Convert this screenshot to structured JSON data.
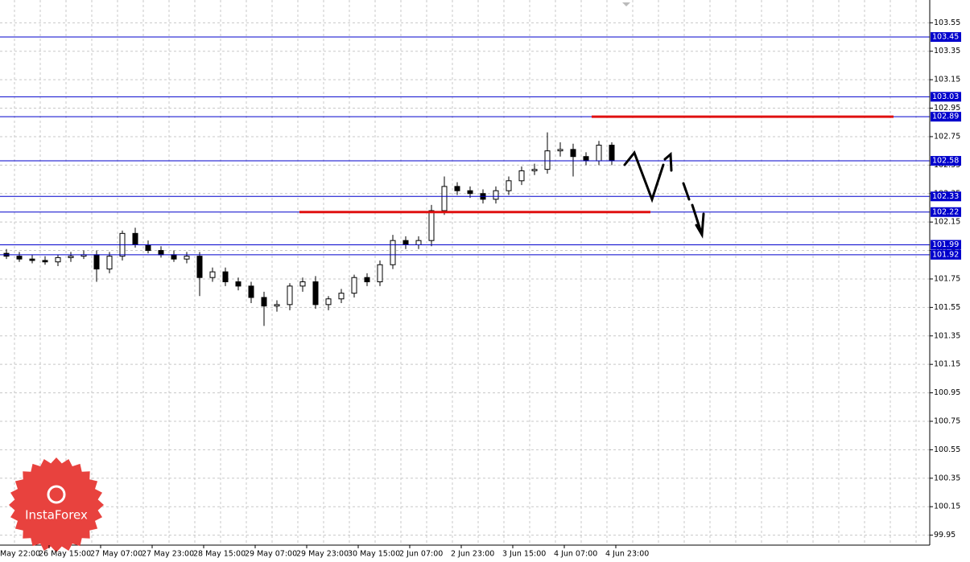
{
  "chart_data": {
    "type": "candlestick",
    "x_labels": [
      "May 22:00",
      "26 May 15:00",
      "27 May 07:00",
      "27 May 23:00",
      "28 May 15:00",
      "29 May 07:00",
      "29 May 23:00",
      "30 May 15:00",
      "2 Jun 07:00",
      "2 Jun 23:00",
      "3 Jun 15:00",
      "4 Jun 07:00",
      "4 Jun 23:00"
    ],
    "open": [
      101.93,
      101.91,
      101.89,
      101.88,
      101.87,
      101.9,
      101.91,
      101.92,
      101.82,
      101.91,
      102.07,
      101.99,
      101.95,
      101.92,
      101.89,
      101.91,
      101.76,
      101.8,
      101.73,
      101.7,
      101.62,
      101.56,
      101.57,
      101.7,
      101.73,
      101.57,
      101.61,
      101.65,
      101.76,
      101.73,
      101.85,
      102.02,
      101.99,
      102.02,
      102.23,
      102.4,
      102.37,
      102.35,
      102.31,
      102.37,
      102.44,
      102.51,
      102.52,
      102.65,
      102.66,
      102.61,
      102.58,
      102.69
    ],
    "high": [
      101.96,
      101.94,
      101.92,
      101.91,
      101.92,
      101.94,
      101.95,
      101.95,
      101.94,
      102.09,
      102.11,
      102.02,
      101.98,
      101.95,
      101.94,
      101.94,
      101.83,
      101.83,
      101.76,
      101.73,
      101.66,
      101.6,
      101.72,
      101.76,
      101.77,
      101.63,
      101.68,
      101.78,
      101.79,
      101.88,
      102.06,
      102.05,
      102.05,
      102.27,
      102.47,
      102.43,
      102.4,
      102.38,
      102.4,
      102.47,
      102.54,
      102.56,
      102.78,
      102.71,
      102.7,
      102.64,
      102.72,
      102.71
    ],
    "low": [
      101.89,
      101.87,
      101.86,
      101.85,
      101.84,
      101.87,
      101.89,
      101.73,
      101.79,
      101.88,
      101.97,
      101.93,
      101.9,
      101.87,
      101.86,
      101.63,
      101.73,
      101.7,
      101.67,
      101.58,
      101.42,
      101.52,
      101.53,
      101.66,
      101.54,
      101.53,
      101.58,
      101.62,
      101.7,
      101.7,
      101.82,
      101.96,
      101.96,
      101.98,
      102.2,
      102.34,
      102.32,
      102.28,
      102.28,
      102.34,
      102.41,
      102.48,
      102.49,
      102.61,
      102.47,
      102.55,
      102.55,
      102.55
    ],
    "close": [
      101.91,
      101.89,
      101.88,
      101.87,
      101.9,
      101.91,
      101.92,
      101.82,
      101.91,
      102.07,
      101.99,
      101.95,
      101.92,
      101.89,
      101.91,
      101.76,
      101.8,
      101.73,
      101.7,
      101.62,
      101.56,
      101.57,
      101.7,
      101.73,
      101.57,
      101.61,
      101.65,
      101.76,
      101.73,
      101.85,
      102.02,
      101.99,
      102.02,
      102.23,
      102.4,
      102.37,
      102.35,
      102.31,
      102.37,
      102.44,
      102.51,
      102.52,
      102.65,
      102.66,
      102.61,
      102.58,
      102.69,
      102.58
    ],
    "levels": [
      103.45,
      103.03,
      102.89,
      102.58,
      102.33,
      102.22,
      101.99,
      101.92
    ],
    "level_color": "#0000cc",
    "targets": [
      102.22,
      102.89
    ],
    "target_color": "#e01010",
    "ylim": [
      99.88,
      103.71
    ],
    "yticks": [
      103.55,
      103.35,
      103.15,
      102.95,
      102.75,
      102.55,
      102.35,
      102.15,
      101.95,
      101.75,
      101.55,
      101.35,
      101.15,
      100.95,
      100.75,
      100.55,
      100.35,
      100.15,
      99.95
    ],
    "grid": true,
    "logo": "InstaForex"
  }
}
